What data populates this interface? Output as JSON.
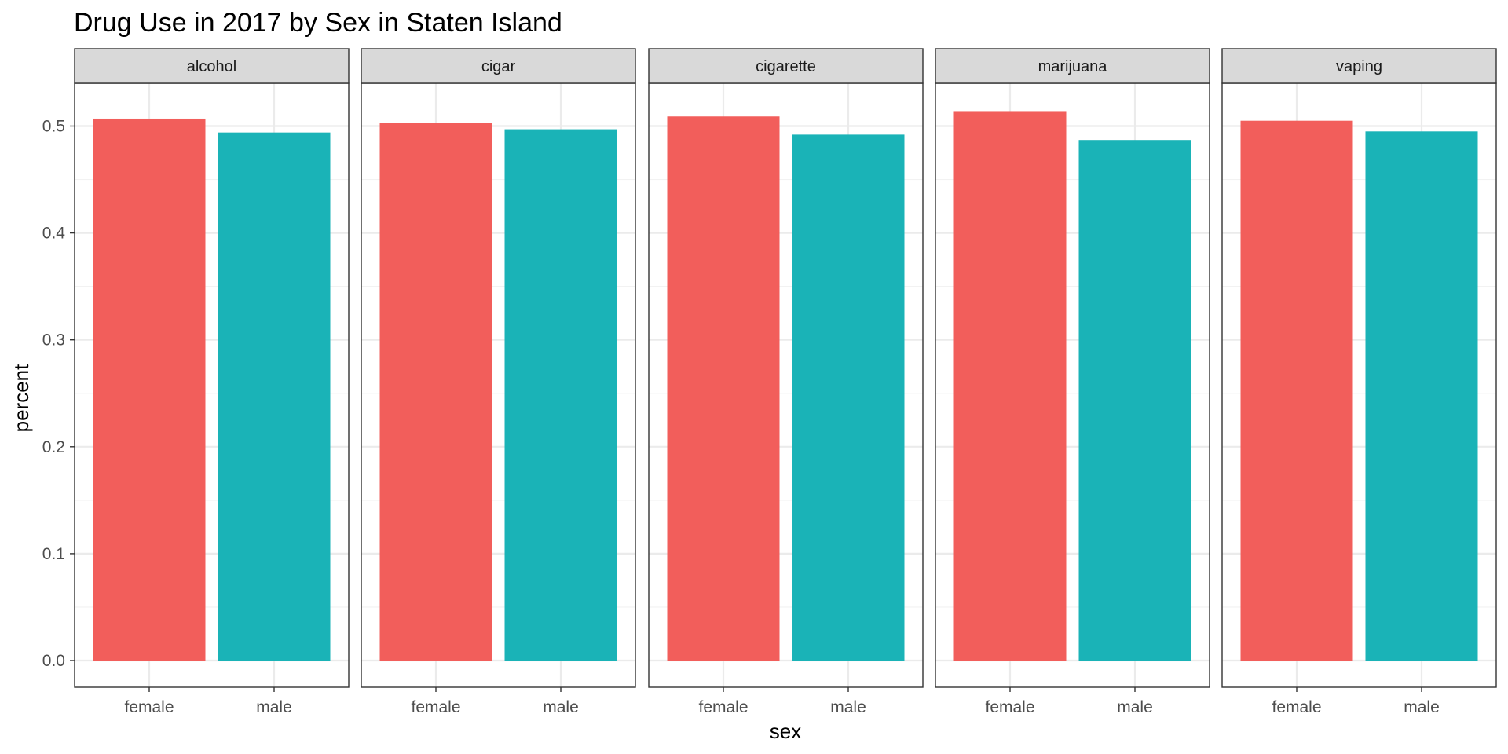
{
  "chart_data": {
    "type": "bar",
    "title": "Drug Use in 2017 by Sex in Staten Island",
    "xlabel": "sex",
    "ylabel": "percent",
    "ylim": [
      0,
      0.55
    ],
    "yticks": [
      "0.0",
      "0.1",
      "0.2",
      "0.3",
      "0.4",
      "0.5"
    ],
    "ytick_values": [
      0,
      0.1,
      0.2,
      0.3,
      0.4,
      0.5
    ],
    "categories": [
      "female",
      "male"
    ],
    "grid": true,
    "legend": "none",
    "colors": {
      "female": "#F25E5B",
      "male": "#1AB3B7"
    },
    "facets": [
      {
        "label": "alcohol",
        "values": [
          0.507,
          0.494
        ]
      },
      {
        "label": "cigar",
        "values": [
          0.503,
          0.497
        ]
      },
      {
        "label": "cigarette",
        "values": [
          0.509,
          0.492
        ]
      },
      {
        "label": "marijuana",
        "values": [
          0.514,
          0.487
        ]
      },
      {
        "label": "vaping",
        "values": [
          0.505,
          0.495
        ]
      }
    ]
  }
}
